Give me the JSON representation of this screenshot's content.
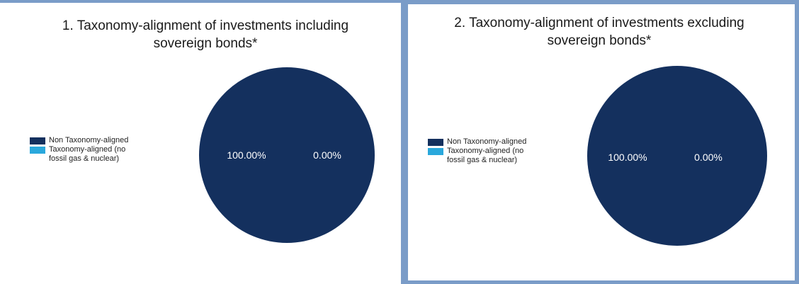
{
  "colors": {
    "non_aligned": "#14305e",
    "aligned": "#2aa8dc",
    "frame": "#7a9cc8"
  },
  "chart_data": [
    {
      "type": "pie",
      "title_line1": "1. Taxonomy-alignment of investments including",
      "title_line2": "sovereign bonds*",
      "legend_placement": "left",
      "series": [
        {
          "name": "Non Taxonomy-aligned",
          "value": 100.0,
          "label": "100.00%"
        },
        {
          "name": "Taxonomy-aligned (no fossil gas & nuclear)",
          "value": 0.0,
          "label": "0.00%"
        }
      ]
    },
    {
      "type": "pie",
      "title_line1": "2. Taxonomy-alignment of investments excluding",
      "title_line2": "sovereign bonds*",
      "legend_placement": "left",
      "series": [
        {
          "name": "Non Taxonomy-aligned",
          "value": 100.0,
          "label": "100.00%"
        },
        {
          "name": "Taxonomy-aligned (no fossil gas & nuclear)",
          "value": 0.0,
          "label": "0.00%"
        }
      ]
    }
  ]
}
